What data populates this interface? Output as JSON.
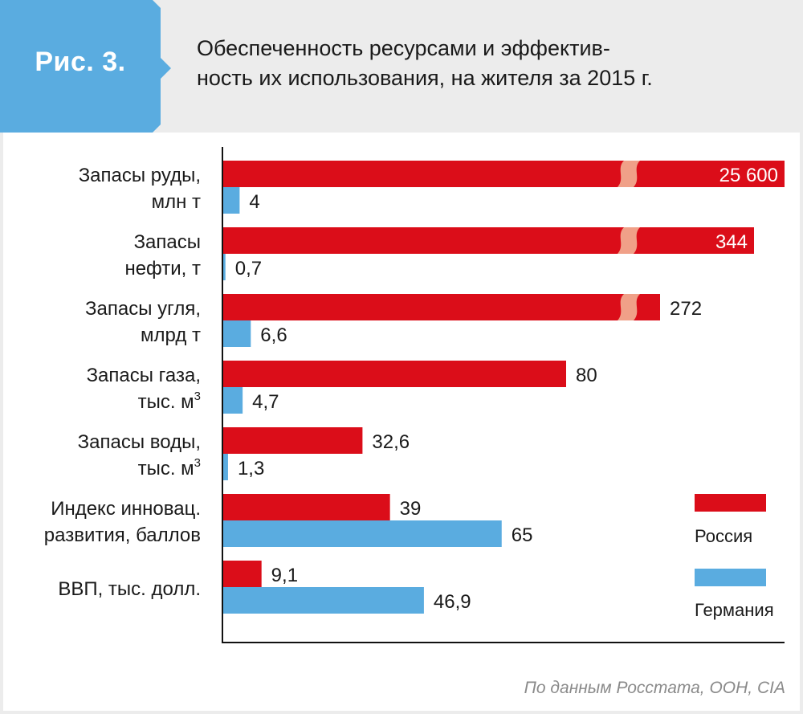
{
  "header": {
    "figure_label": "Рис. 3.",
    "title_line1": "Обеспеченность ресурсами и эффектив-",
    "title_line2": "ность их использования, на жителя за 2015 г."
  },
  "colors": {
    "russia": "#db0d19",
    "germany": "#5aace0",
    "break_mark": "#f0a088",
    "tab": "#5aace0",
    "header_bg": "#ececec"
  },
  "chart_data": {
    "type": "bar",
    "orientation": "horizontal",
    "title": "Обеспеченность ресурсами и эффективность их использования, на жителя за 2015 г.",
    "xlabel": "",
    "ylabel": "",
    "grid": false,
    "legend_position": "right",
    "categories": [
      {
        "line1": "Запасы руды,",
        "line2": "млн т",
        "sup": ""
      },
      {
        "line1": "Запасы",
        "line2": "нефти, т",
        "sup": ""
      },
      {
        "line1": "Запасы угля,",
        "line2": "млрд т",
        "sup": ""
      },
      {
        "line1": "Запасы газа,",
        "line2": "тыс. м",
        "sup": "3"
      },
      {
        "line1": "Запасы воды,",
        "line2": "тыс. м",
        "sup": "3"
      },
      {
        "line1": "Индекс инновац.",
        "line2": "развития, баллов",
        "sup": ""
      },
      {
        "line1": "ВВП, тыс. долл.",
        "line2": "",
        "sup": ""
      }
    ],
    "series": [
      {
        "name": "Россия",
        "values": [
          25600,
          344,
          272,
          80,
          32.6,
          39,
          9.1
        ],
        "labels": [
          "25 600",
          "344",
          "272",
          "80",
          "32,6",
          "39",
          "9,1"
        ],
        "axis_break": [
          true,
          true,
          true,
          false,
          false,
          false,
          false
        ],
        "label_inside": [
          true,
          true,
          false,
          false,
          false,
          false,
          false
        ]
      },
      {
        "name": "Германия",
        "values": [
          4,
          0.7,
          6.6,
          4.7,
          1.3,
          65,
          46.9
        ],
        "labels": [
          "4",
          "0,7",
          "6,6",
          "4,7",
          "1,3",
          "65",
          "46,9"
        ]
      }
    ],
    "legend": [
      "Россия",
      "Германия"
    ]
  },
  "source": "По данным Росстата, ООН, CIA"
}
